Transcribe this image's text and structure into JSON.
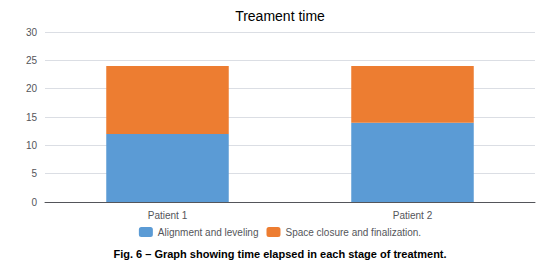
{
  "chart_data": {
    "type": "bar",
    "title": "Treament time",
    "caption": "Fig. 6 – Graph showing time elapsed in each stage of treatment.",
    "categories": [
      "Patient 1",
      "Patient 2"
    ],
    "series": [
      {
        "name": "Alignment and leveling",
        "color": "#5B9BD5",
        "values": [
          12,
          14
        ]
      },
      {
        "name": "Space closure and finalization.",
        "color": "#ED7D31",
        "values": [
          12,
          10
        ]
      }
    ],
    "stacked": true,
    "ylim": [
      0,
      30
    ],
    "yticks": [
      0,
      5,
      10,
      15,
      20,
      25,
      30
    ],
    "grid": true,
    "legend": "bottom"
  }
}
